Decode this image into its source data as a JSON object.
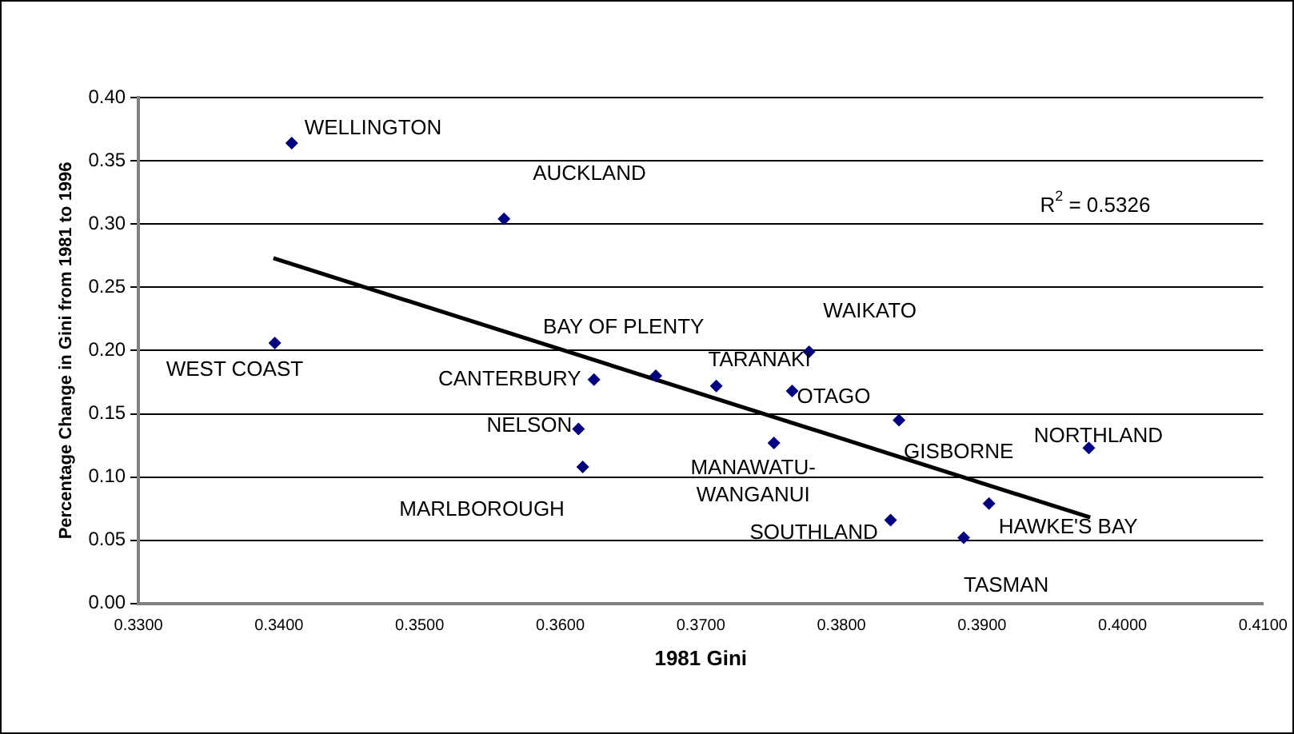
{
  "chart_data": {
    "type": "scatter",
    "xlabel": "1981 Gini",
    "ylabel": "Percentage Change in Gini from 1981 to 1996",
    "xlim": [
      0.33,
      0.41
    ],
    "xticks": [
      {
        "value": 0.33,
        "label": "0.3300"
      },
      {
        "value": 0.34,
        "label": "0.3400"
      },
      {
        "value": 0.35,
        "label": "0.3500"
      },
      {
        "value": 0.36,
        "label": "0.3600"
      },
      {
        "value": 0.37,
        "label": "0.3700"
      },
      {
        "value": 0.38,
        "label": "0.3800"
      },
      {
        "value": 0.39,
        "label": "0.3900"
      },
      {
        "value": 0.4,
        "label": "0.4000"
      },
      {
        "value": 0.41,
        "label": "0.4100"
      }
    ],
    "ylim": [
      0,
      0.4
    ],
    "yticks": [
      {
        "value": 0,
        "label": "0.00"
      },
      {
        "value": 0.05,
        "label": "0.05"
      },
      {
        "value": 0.1,
        "label": "0.10"
      },
      {
        "value": 0.15,
        "label": "0.15"
      },
      {
        "value": 0.2,
        "label": "0.20"
      },
      {
        "value": 0.25,
        "label": "0.25"
      },
      {
        "value": 0.3,
        "label": "0.30"
      },
      {
        "value": 0.35,
        "label": "0.35"
      },
      {
        "value": 0.4,
        "label": "0.40"
      }
    ],
    "grid": "y",
    "legend": false,
    "marker": "diamond",
    "series": [
      {
        "type": "scatter",
        "color": "#000080",
        "x": [
          0.3409,
          0.356,
          0.3397,
          0.3624,
          0.3613,
          0.3616,
          0.3668,
          0.3711,
          0.3777,
          0.3765,
          0.3841,
          0.3976,
          0.3752,
          0.3905,
          0.3835,
          0.3887
        ],
        "values": [
          0.364,
          0.304,
          0.206,
          0.177,
          0.138,
          0.108,
          0.18,
          0.172,
          0.199,
          0.168,
          0.145,
          0.123,
          0.127,
          0.079,
          0.066,
          0.052
        ]
      },
      {
        "type": "line",
        "color": "#000000",
        "marker": "none",
        "x": [
          0.3396,
          0.3977
        ],
        "values": [
          0.273,
          0.068
        ]
      }
    ],
    "annotations": [
      {
        "text": "WELLINGTON",
        "x": 0.3409,
        "y": 0.364
      },
      {
        "text": "AUCKLAND",
        "x": 0.356,
        "y": 0.304
      },
      {
        "text": "WEST COAST",
        "x": 0.3397,
        "y": 0.206
      },
      {
        "text": "CANTERBURY",
        "x": 0.3624,
        "y": 0.177
      },
      {
        "text": "NELSON",
        "x": 0.3613,
        "y": 0.138
      },
      {
        "text": "MARLBOROUGH",
        "x": 0.3616,
        "y": 0.108
      },
      {
        "text": "BAY OF PLENTY",
        "x": 0.3668,
        "y": 0.18
      },
      {
        "text": "TARANAKI",
        "x": 0.3711,
        "y": 0.172
      },
      {
        "text": "WAIKATO",
        "x": 0.3777,
        "y": 0.199
      },
      {
        "text": "OTAGO",
        "x": 0.3765,
        "y": 0.168
      },
      {
        "text": "GISBORNE",
        "x": 0.3841,
        "y": 0.145
      },
      {
        "text": "NORTHLAND",
        "x": 0.3976,
        "y": 0.123
      },
      {
        "text": "MANAWATU-\nWANGANUI",
        "x": 0.3752,
        "y": 0.127
      },
      {
        "text": "HAWKE'S BAY",
        "x": 0.3905,
        "y": 0.079
      },
      {
        "text": "SOUTHLAND",
        "x": 0.3835,
        "y": 0.066
      },
      {
        "text": "TASMAN",
        "x": 0.3887,
        "y": 0.052
      },
      "R$^{2}$ = 0.5326"
    ]
  }
}
